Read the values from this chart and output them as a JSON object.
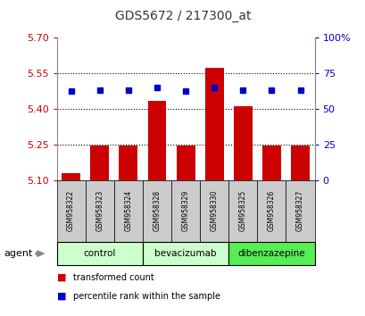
{
  "title": "GDS5672 / 217300_at",
  "samples": [
    "GSM958322",
    "GSM958323",
    "GSM958324",
    "GSM958328",
    "GSM958329",
    "GSM958330",
    "GSM958325",
    "GSM958326",
    "GSM958327"
  ],
  "transformed_count": [
    5.13,
    5.245,
    5.245,
    5.435,
    5.245,
    5.575,
    5.41,
    5.245,
    5.245
  ],
  "percentile_y": [
    5.475,
    5.48,
    5.48,
    5.49,
    5.475,
    5.49,
    5.48,
    5.48,
    5.48
  ],
  "y_min": 5.1,
  "y_max": 5.7,
  "y_ticks": [
    5.1,
    5.25,
    5.4,
    5.55,
    5.7
  ],
  "y_right_ticks": [
    0,
    25,
    50,
    75,
    100
  ],
  "y_right_labels": [
    "0",
    "25",
    "50",
    "75",
    "100%"
  ],
  "groups": [
    {
      "name": "control",
      "start": 0,
      "end": 3,
      "color": "#ccffcc"
    },
    {
      "name": "bevacizumab",
      "start": 3,
      "end": 6,
      "color": "#ccffcc"
    },
    {
      "name": "dibenzazepine",
      "start": 6,
      "end": 9,
      "color": "#55ee55"
    }
  ],
  "bar_color": "#cc0000",
  "dot_color": "#0000cc",
  "left_tick_color": "#cc0000",
  "right_tick_color": "#0000cc",
  "title_color": "#333333",
  "sample_box_color": "#cccccc",
  "agent_arrow_color": "#888888",
  "spine_color": "#888888"
}
